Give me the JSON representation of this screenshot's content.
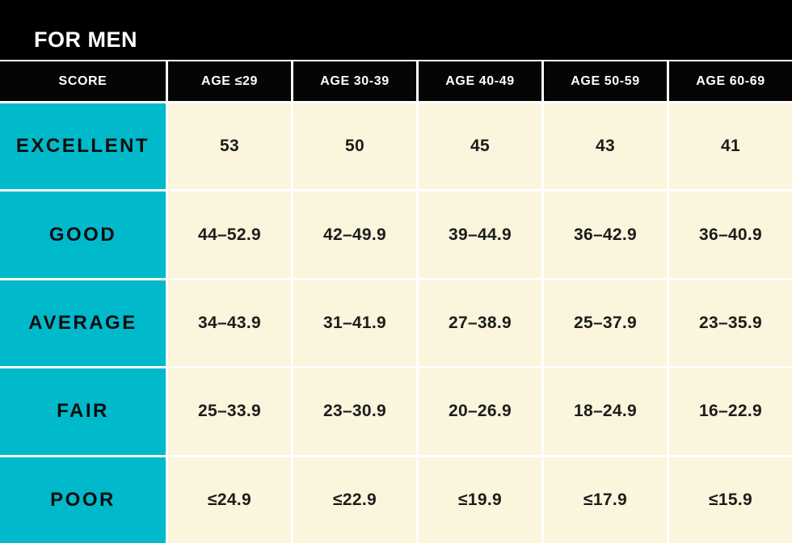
{
  "title": "FOR MEN",
  "colors": {
    "accent_cyan": "#00B9CB",
    "cell_cream": "#FAF5DC",
    "header_black": "#000000",
    "separator_white": "#FFFFFF"
  },
  "chart_data": {
    "type": "table",
    "title": "FOR MEN",
    "columns": [
      "SCORE",
      "AGE ≤29",
      "AGE 30-39",
      "AGE 40-49",
      "AGE 50-59",
      "AGE 60-69"
    ],
    "rows": [
      {
        "label": "EXCELLENT",
        "values": [
          "53",
          "50",
          "45",
          "43",
          "41"
        ]
      },
      {
        "label": "GOOD",
        "values": [
          "44–52.9",
          "42–49.9",
          "39–44.9",
          "36–42.9",
          "36–40.9"
        ]
      },
      {
        "label": "AVERAGE",
        "values": [
          "34–43.9",
          "31–41.9",
          "27–38.9",
          "25–37.9",
          "23–35.9"
        ]
      },
      {
        "label": "FAIR",
        "values": [
          "25–33.9",
          "23–30.9",
          "20–26.9",
          "18–24.9",
          "16–22.9"
        ]
      },
      {
        "label": "POOR",
        "values": [
          "≤24.9",
          "≤22.9",
          "≤19.9",
          "≤17.9",
          "≤15.9"
        ]
      }
    ]
  }
}
